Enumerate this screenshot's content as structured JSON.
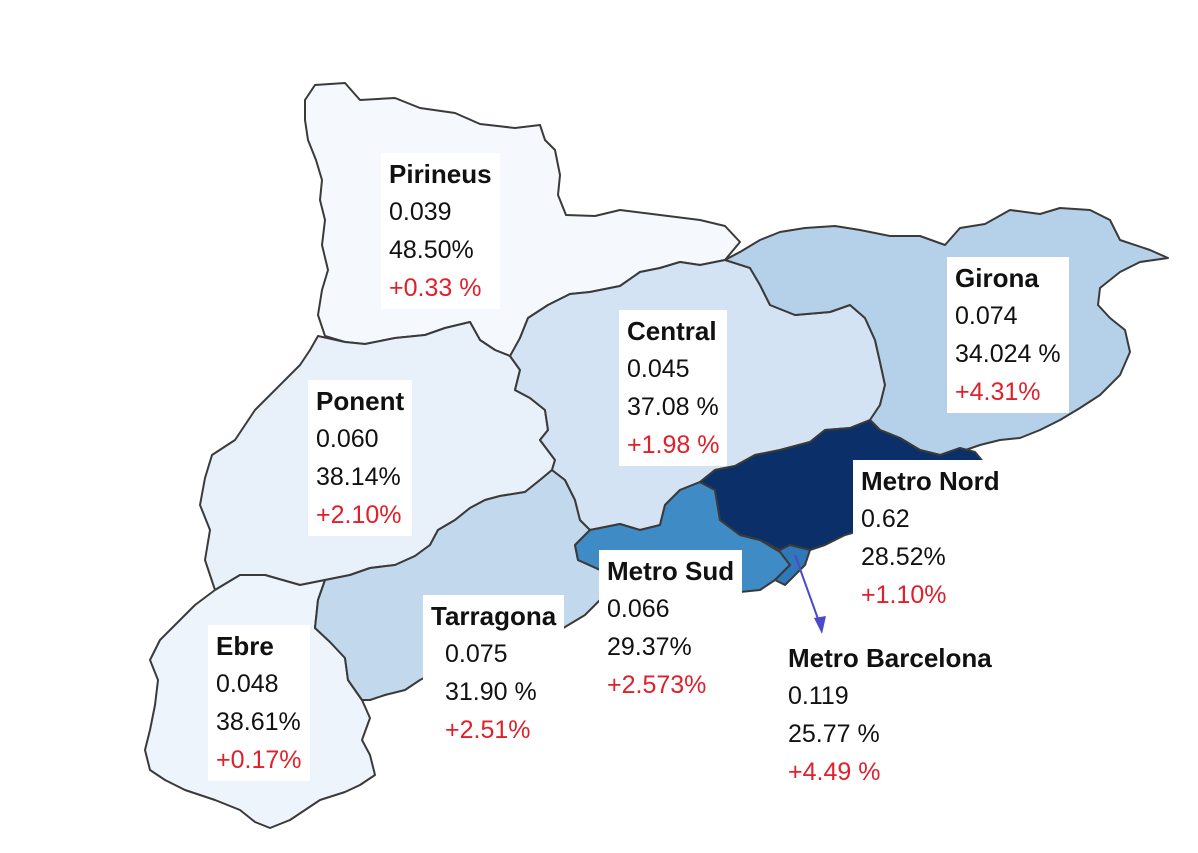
{
  "colors": {
    "change_text": "#e0202a",
    "arrow": "#4a4acc",
    "border": "#3a3a3a"
  },
  "regions": {
    "pirineus": {
      "name": "Pirineus",
      "value": "0.039",
      "share": "48.50%",
      "change": "+0.33 %",
      "fill": "#f5f9fe"
    },
    "ponent": {
      "name": "Ponent",
      "value": "0.060",
      "share": "38.14%",
      "change": "+2.10%",
      "fill": "#e8f0fa"
    },
    "ebre": {
      "name": "Ebre",
      "value": "0.048",
      "share": "38.61%",
      "change": "+0.17%",
      "fill": "#eef4fb"
    },
    "central": {
      "name": "Central",
      "value": "0.045",
      "share": "37.08 %",
      "change": "+1.98 %",
      "fill": "#d3e3f3"
    },
    "girona": {
      "name": "Girona",
      "value": "0.074",
      "share": "34.024 %",
      "change": "+4.31%",
      "fill": "#b5d1e9"
    },
    "tarragona": {
      "name": "Tarragona",
      "value": "0.075",
      "share": "31.90 %",
      "change": "+2.51%",
      "fill": "#c2d8ec"
    },
    "metro_sud": {
      "name": "Metro Sud",
      "value": "0.066",
      "share": "29.37%",
      "change": "+2.573%",
      "fill": "#3f8bc6"
    },
    "metro_nord": {
      "name": "Metro Nord",
      "value": "0.62",
      "share": "28.52%",
      "change": "+1.10%",
      "fill": "#0a2f69"
    },
    "metro_bcn": {
      "name": "Metro Barcelona",
      "value": "0.119",
      "share": "25.77 %",
      "change": "+4.49 %",
      "fill": "#2f79bb"
    }
  }
}
